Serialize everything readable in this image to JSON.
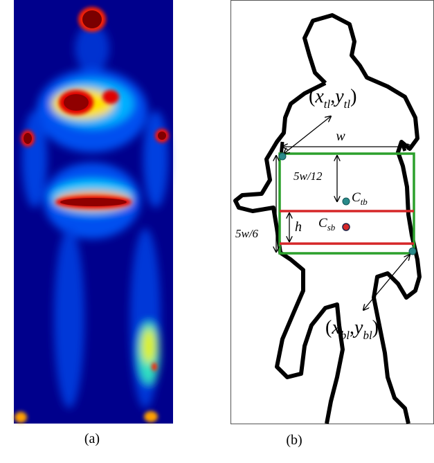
{
  "panel_a": {
    "caption": "(a)"
  },
  "panel_b": {
    "caption": "(b)",
    "top_left": {
      "open": "(",
      "x": "x",
      "x_sub": "tl",
      "sep": ",",
      "y": "y",
      "y_sub": "tl",
      "close": ")"
    },
    "bottom_left": {
      "open": "(",
      "x": "x",
      "x_sub": "bl",
      "sep": ",",
      "y": "y",
      "y_sub": "bl",
      "close": ")"
    },
    "width": "w",
    "offset": "5w/12",
    "height_total": "5w/6",
    "h": "h",
    "c_tb": {
      "main": "C",
      "sub": "tb"
    },
    "c_sb": {
      "main": "C",
      "sub": "sb"
    }
  }
}
